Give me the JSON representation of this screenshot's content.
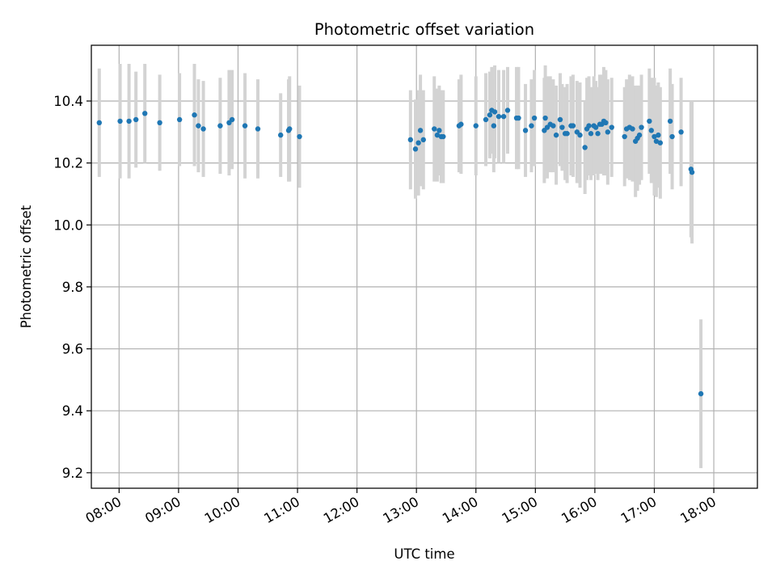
{
  "chart_data": {
    "type": "scatter",
    "title": "Photometric offset variation",
    "xlabel": "UTC time",
    "ylabel": "Photometric offset",
    "xlim": [
      "07:32",
      "18:44"
    ],
    "ylim": [
      9.15,
      10.58
    ],
    "x_ticks": [
      "08:00",
      "09:00",
      "10:00",
      "11:00",
      "12:00",
      "13:00",
      "14:00",
      "15:00",
      "16:00",
      "17:00",
      "18:00"
    ],
    "y_ticks": [
      "9.2",
      "9.4",
      "9.6",
      "9.8",
      "10.0",
      "10.2",
      "10.4"
    ],
    "grid": true,
    "legend": "none",
    "colors": {
      "point": "#1f77b4",
      "errorbar": "#d3d3d3",
      "grid": "#b0b0b0"
    },
    "series": [
      {
        "x": [
          "07:40",
          "08:01",
          "08:10",
          "08:17",
          "08:26",
          "08:41",
          "09:01",
          "09:16",
          "09:20",
          "09:25",
          "09:42",
          "09:51",
          "09:54",
          "10:07",
          "10:20",
          "10:43",
          "10:51",
          "10:52",
          "11:02",
          "12:54",
          "12:59",
          "13:02",
          "13:04",
          "13:07",
          "13:18",
          "13:21",
          "13:23",
          "13:25",
          "13:27",
          "13:43",
          "13:45",
          "14:00",
          "14:10",
          "14:14",
          "14:16",
          "14:18",
          "14:19",
          "14:23",
          "14:28",
          "14:32",
          "14:41",
          "14:43",
          "14:50",
          "14:56",
          "14:59",
          "15:09",
          "15:10",
          "15:12",
          "15:15",
          "15:18",
          "15:21",
          "15:25",
          "15:27",
          "15:30",
          "15:32",
          "15:36",
          "15:38",
          "15:42",
          "15:45",
          "15:50",
          "15:52",
          "15:54",
          "15:56",
          "15:59",
          "16:01",
          "16:03",
          "16:05",
          "16:07",
          "16:09",
          "16:11",
          "16:13",
          "16:17",
          "16:30",
          "16:32",
          "16:35",
          "16:38",
          "16:41",
          "16:43",
          "16:45",
          "16:47",
          "16:55",
          "16:57",
          "17:00",
          "17:02",
          "17:04",
          "17:06",
          "17:16",
          "17:18",
          "17:27",
          "17:37",
          "17:38",
          "17:47"
        ],
        "y": [
          10.33,
          10.335,
          10.335,
          10.34,
          10.36,
          10.33,
          10.34,
          10.355,
          10.32,
          10.31,
          10.32,
          10.33,
          10.34,
          10.32,
          10.31,
          10.29,
          10.305,
          10.31,
          10.285,
          10.275,
          10.245,
          10.265,
          10.305,
          10.275,
          10.31,
          10.29,
          10.305,
          10.285,
          10.285,
          10.32,
          10.325,
          10.32,
          10.34,
          10.355,
          10.37,
          10.32,
          10.365,
          10.35,
          10.35,
          10.37,
          10.345,
          10.345,
          10.305,
          10.32,
          10.345,
          10.305,
          10.345,
          10.315,
          10.325,
          10.32,
          10.29,
          10.34,
          10.315,
          10.295,
          10.295,
          10.32,
          10.32,
          10.3,
          10.29,
          10.25,
          10.31,
          10.32,
          10.295,
          10.32,
          10.315,
          10.295,
          10.325,
          10.325,
          10.335,
          10.33,
          10.3,
          10.315,
          10.285,
          10.31,
          10.315,
          10.31,
          10.27,
          10.28,
          10.29,
          10.315,
          10.335,
          10.305,
          10.285,
          10.27,
          10.29,
          10.265,
          10.335,
          10.285,
          10.3,
          10.18,
          10.17,
          9.455
        ],
        "err": [
          0.175,
          0.185,
          0.185,
          0.155,
          0.16,
          0.155,
          0.15,
          0.165,
          0.15,
          0.155,
          0.155,
          0.17,
          0.16,
          0.17,
          0.16,
          0.135,
          0.165,
          0.17,
          0.165,
          0.16,
          0.16,
          0.17,
          0.18,
          0.16,
          0.17,
          0.15,
          0.145,
          0.15,
          0.15,
          0.15,
          0.16,
          0.16,
          0.15,
          0.14,
          0.14,
          0.15,
          0.15,
          0.15,
          0.15,
          0.14,
          0.165,
          0.165,
          0.15,
          0.15,
          0.155,
          0.17,
          0.17,
          0.165,
          0.155,
          0.15,
          0.16,
          0.15,
          0.14,
          0.15,
          0.16,
          0.16,
          0.165,
          0.165,
          0.17,
          0.15,
          0.165,
          0.16,
          0.15,
          0.16,
          0.15,
          0.15,
          0.16,
          0.16,
          0.175,
          0.17,
          0.17,
          0.16,
          0.16,
          0.16,
          0.17,
          0.17,
          0.18,
          0.17,
          0.16,
          0.17,
          0.17,
          0.17,
          0.19,
          0.18,
          0.17,
          0.18,
          0.17,
          0.17,
          0.175,
          0.22,
          0.23,
          0.24
        ]
      }
    ]
  }
}
